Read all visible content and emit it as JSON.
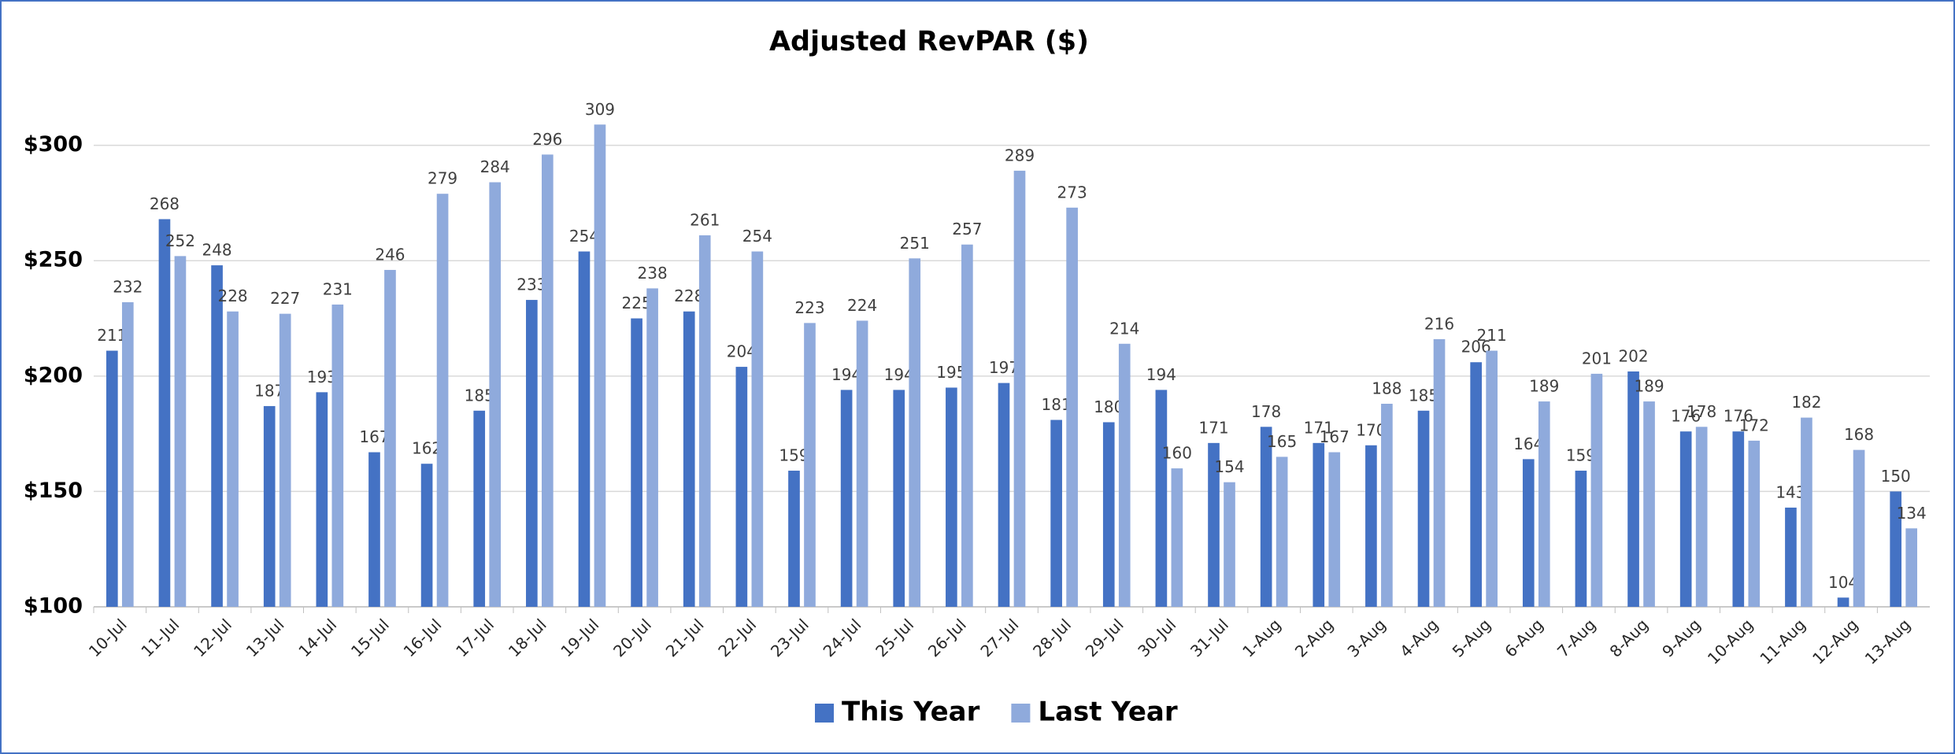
{
  "chart_data": {
    "type": "bar",
    "title": "Adjusted RevPAR ($)",
    "categories": [
      "10-Jul",
      "11-Jul",
      "12-Jul",
      "13-Jul",
      "14-Jul",
      "15-Jul",
      "16-Jul",
      "17-Jul",
      "18-Jul",
      "19-Jul",
      "20-Jul",
      "21-Jul",
      "22-Jul",
      "23-Jul",
      "24-Jul",
      "25-Jul",
      "26-Jul",
      "27-Jul",
      "28-Jul",
      "29-Jul",
      "30-Jul",
      "31-Jul",
      "1-Aug",
      "2-Aug",
      "3-Aug",
      "4-Aug",
      "5-Aug",
      "6-Aug",
      "7-Aug",
      "8-Aug",
      "9-Aug",
      "10-Aug",
      "11-Aug",
      "12-Aug",
      "13-Aug"
    ],
    "series": [
      {
        "name": "This Year",
        "color": "#4472c4",
        "values": [
          211,
          268,
          248,
          187,
          193,
          167,
          162,
          185,
          233,
          254,
          225,
          228,
          204,
          159,
          194,
          194,
          195,
          197,
          181,
          180,
          194,
          171,
          178,
          171,
          170,
          185,
          206,
          164,
          159,
          202,
          176,
          176,
          143,
          104,
          150
        ]
      },
      {
        "name": "Last Year",
        "color": "#8faadc",
        "values": [
          232,
          252,
          228,
          227,
          231,
          246,
          279,
          284,
          296,
          309,
          238,
          261,
          254,
          223,
          224,
          251,
          257,
          289,
          273,
          214,
          160,
          154,
          165,
          167,
          188,
          216,
          211,
          189,
          201,
          189,
          178,
          172,
          182,
          168,
          134
        ]
      }
    ],
    "ylim": [
      100,
      320
    ],
    "yticks": [
      {
        "value": 100,
        "label": "$100"
      },
      {
        "value": 150,
        "label": "$150"
      },
      {
        "value": 200,
        "label": "$200"
      },
      {
        "value": 250,
        "label": "$250"
      },
      {
        "value": 300,
        "label": "$300"
      }
    ],
    "grid": true,
    "legend": "bottom"
  }
}
